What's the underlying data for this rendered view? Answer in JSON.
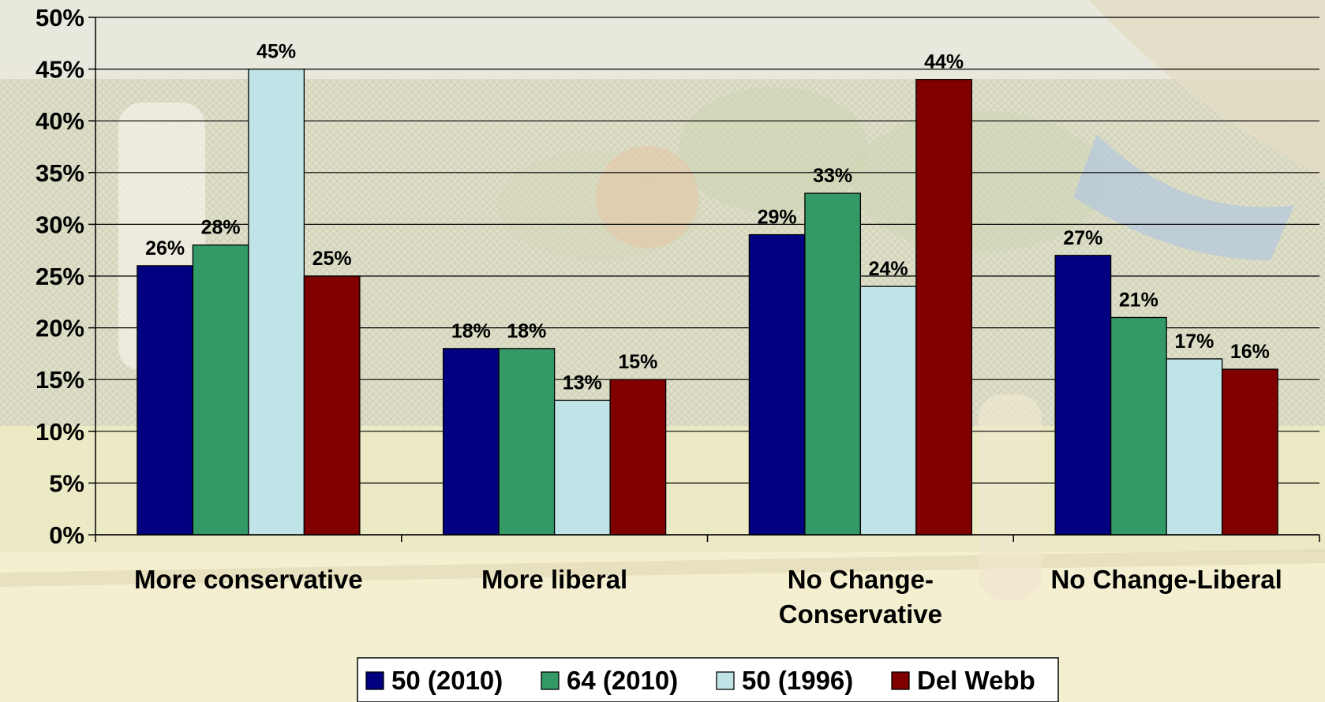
{
  "chart_data": {
    "type": "bar",
    "categories": [
      [
        "More conservative"
      ],
      [
        "More liberal"
      ],
      [
        "No Change-",
        "Conservative"
      ],
      [
        "No Change-Liberal"
      ]
    ],
    "series": [
      {
        "name": "50 (2010)",
        "color": "#000080",
        "values": [
          26,
          18,
          29,
          27
        ]
      },
      {
        "name": "64 (2010)",
        "color": "#339966",
        "values": [
          28,
          18,
          33,
          21
        ]
      },
      {
        "name": "50 (1996)",
        "color": "#bfe3e6",
        "values": [
          45,
          13,
          24,
          17
        ]
      },
      {
        "name": "Del Webb",
        "color": "#800000",
        "values": [
          25,
          15,
          44,
          16
        ]
      }
    ],
    "data_labels": [
      [
        "26%",
        "18%",
        "29%",
        "27%"
      ],
      [
        "28%",
        "18%",
        "33%",
        "21%"
      ],
      [
        "45%",
        "13%",
        "24%",
        "17%"
      ],
      [
        "25%",
        "15%",
        "44%",
        "16%"
      ]
    ],
    "yticks": [
      0,
      5,
      10,
      15,
      20,
      25,
      30,
      35,
      40,
      45,
      50
    ],
    "ytick_labels": [
      "0%",
      "5%",
      "10%",
      "15%",
      "20%",
      "25%",
      "30%",
      "35%",
      "40%",
      "45%",
      "50%"
    ],
    "ylim": [
      0,
      50
    ],
    "grid": true,
    "legend_position": "bottom",
    "title": "",
    "xlabel": "",
    "ylabel": ""
  }
}
